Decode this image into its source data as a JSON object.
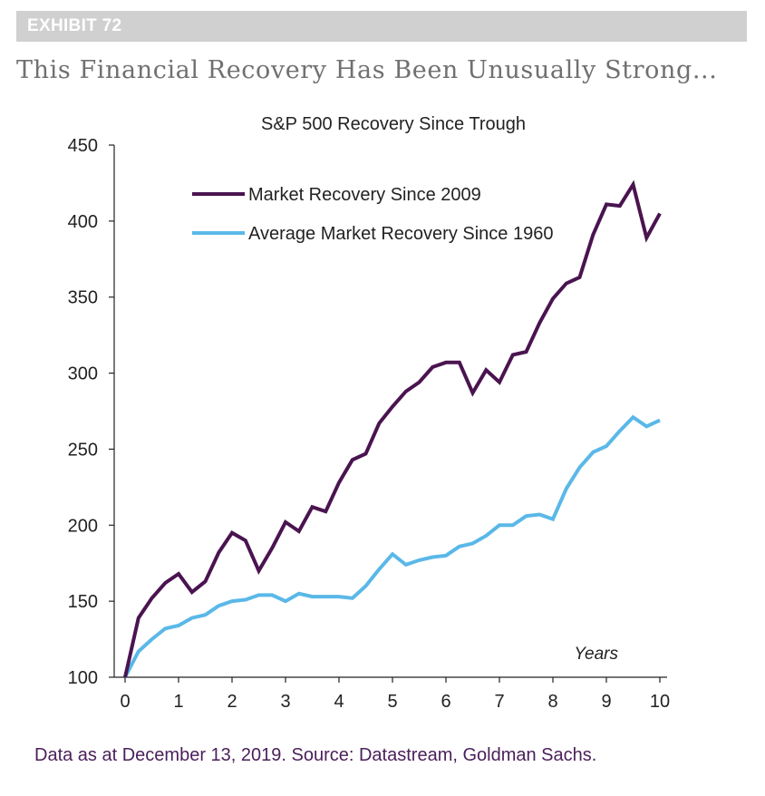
{
  "exhibit": {
    "label": "EXHIBIT 72"
  },
  "headline": "This Financial Recovery Has Been Unusually Strong...",
  "footnote": "Data as at December 13, 2019. Source: Datastream, Goldman Sachs.",
  "colors": {
    "series_2009": "#4a1450",
    "series_1960": "#5ab8e8",
    "axis": "#222222",
    "exhibit_bar": "#d0d0d0",
    "footnote": "#4a1f5a"
  },
  "chart_data": {
    "type": "line",
    "title": "S&P 500 Recovery Since Trough",
    "xlabel": "Years",
    "ylabel": "",
    "xlim": [
      0,
      10
    ],
    "ylim": [
      100,
      450
    ],
    "xticks": [
      0,
      1,
      2,
      3,
      4,
      5,
      6,
      7,
      8,
      9,
      10
    ],
    "yticks": [
      100,
      150,
      200,
      250,
      300,
      350,
      400,
      450
    ],
    "legend_position": "top-left",
    "series": [
      {
        "name": "Market Recovery Since 2009",
        "color": "#4a1450",
        "x": [
          0,
          0.25,
          0.5,
          0.75,
          1.0,
          1.25,
          1.5,
          1.75,
          2.0,
          2.25,
          2.5,
          2.75,
          3.0,
          3.25,
          3.5,
          3.75,
          4.0,
          4.25,
          4.5,
          4.75,
          5.0,
          5.25,
          5.5,
          5.75,
          6.0,
          6.25,
          6.5,
          6.75,
          7.0,
          7.25,
          7.5,
          7.75,
          8.0,
          8.25,
          8.5,
          8.75,
          9.0,
          9.25,
          9.5,
          9.75,
          10.0
        ],
        "values": [
          100,
          139,
          152,
          162,
          168,
          156,
          163,
          182,
          195,
          190,
          170,
          185,
          202,
          196,
          212,
          209,
          228,
          243,
          247,
          267,
          278,
          288,
          294,
          304,
          307,
          307,
          287,
          302,
          294,
          312,
          314,
          333,
          349,
          359,
          363,
          391,
          411,
          410,
          424,
          389,
          405
        ]
      },
      {
        "name": "Average Market Recovery Since 1960",
        "color": "#5ab8e8",
        "x": [
          0,
          0.25,
          0.5,
          0.75,
          1.0,
          1.25,
          1.5,
          1.75,
          2.0,
          2.25,
          2.5,
          2.75,
          3.0,
          3.25,
          3.5,
          3.75,
          4.0,
          4.25,
          4.5,
          4.75,
          5.0,
          5.25,
          5.5,
          5.75,
          6.0,
          6.25,
          6.5,
          6.75,
          7.0,
          7.25,
          7.5,
          7.75,
          8.0,
          8.25,
          8.5,
          8.75,
          9.0,
          9.25,
          9.5,
          9.75,
          10.0
        ],
        "values": [
          100,
          117,
          125,
          132,
          134,
          139,
          141,
          147,
          150,
          151,
          154,
          154,
          150,
          155,
          153,
          153,
          153,
          152,
          160,
          171,
          181,
          174,
          177,
          179,
          180,
          186,
          188,
          193,
          200,
          200,
          206,
          207,
          204,
          224,
          238,
          248,
          252,
          262,
          271,
          265,
          269
        ]
      }
    ]
  }
}
